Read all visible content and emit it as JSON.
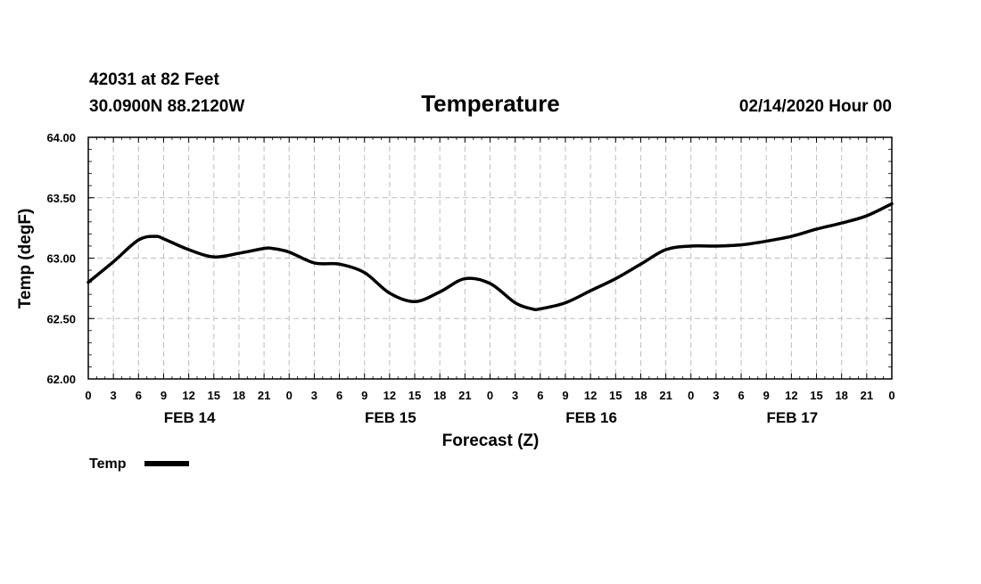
{
  "header": {
    "station_line": "42031 at 82 Feet",
    "coords_line": "30.0900N 88.2120W",
    "datetime_line": "02/14/2020 Hour 00"
  },
  "chart_data": {
    "type": "line",
    "title": "Temperature",
    "xlabel": "Forecast (Z)",
    "ylabel": "Temp (degF)",
    "x_range_hours": [
      0,
      96
    ],
    "ylim": [
      62.0,
      64.0
    ],
    "y_ticks": [
      62.0,
      62.5,
      63.0,
      63.5,
      64.0
    ],
    "y_tick_labels": [
      "62.00",
      "62.50",
      "63.00",
      "63.50",
      "64.00"
    ],
    "x_ticks_hours": [
      0,
      3,
      6,
      9,
      12,
      15,
      18,
      21,
      24,
      27,
      30,
      33,
      36,
      39,
      42,
      45,
      48,
      51,
      54,
      57,
      60,
      63,
      66,
      69,
      72,
      75,
      78,
      81,
      84,
      87,
      90,
      93,
      96
    ],
    "x_tick_labels": [
      "0",
      "3",
      "6",
      "9",
      "12",
      "15",
      "18",
      "21",
      "0",
      "3",
      "6",
      "9",
      "12",
      "15",
      "18",
      "21",
      "0",
      "3",
      "6",
      "9",
      "12",
      "15",
      "18",
      "21",
      "0",
      "3",
      "6",
      "9",
      "12",
      "15",
      "18",
      "21",
      "0"
    ],
    "day_labels": [
      {
        "text": "FEB 14",
        "hour": 12
      },
      {
        "text": "FEB 15",
        "hour": 36
      },
      {
        "text": "FEB 16",
        "hour": 60
      },
      {
        "text": "FEB 17",
        "hour": 84
      }
    ],
    "grid": true,
    "legend": {
      "position": "bottom-left",
      "label": "Temp"
    },
    "series": [
      {
        "name": "Temp",
        "color": "#000000",
        "x": [
          0,
          3,
          6,
          8,
          9,
          12,
          15,
          18,
          21,
          22,
          24,
          27,
          30,
          33,
          36,
          39,
          42,
          45,
          48,
          51,
          53,
          54,
          57,
          60,
          63,
          66,
          69,
          72,
          75,
          78,
          81,
          84,
          87,
          90,
          93,
          96
        ],
        "y": [
          62.8,
          62.97,
          63.15,
          63.18,
          63.16,
          63.07,
          63.01,
          63.04,
          63.08,
          63.08,
          63.05,
          62.96,
          62.95,
          62.88,
          62.71,
          62.64,
          62.72,
          62.83,
          62.79,
          62.63,
          62.58,
          62.58,
          62.63,
          62.73,
          62.83,
          62.95,
          63.07,
          63.1,
          63.1,
          63.11,
          63.14,
          63.18,
          63.24,
          63.29,
          63.35,
          63.45
        ]
      }
    ]
  }
}
